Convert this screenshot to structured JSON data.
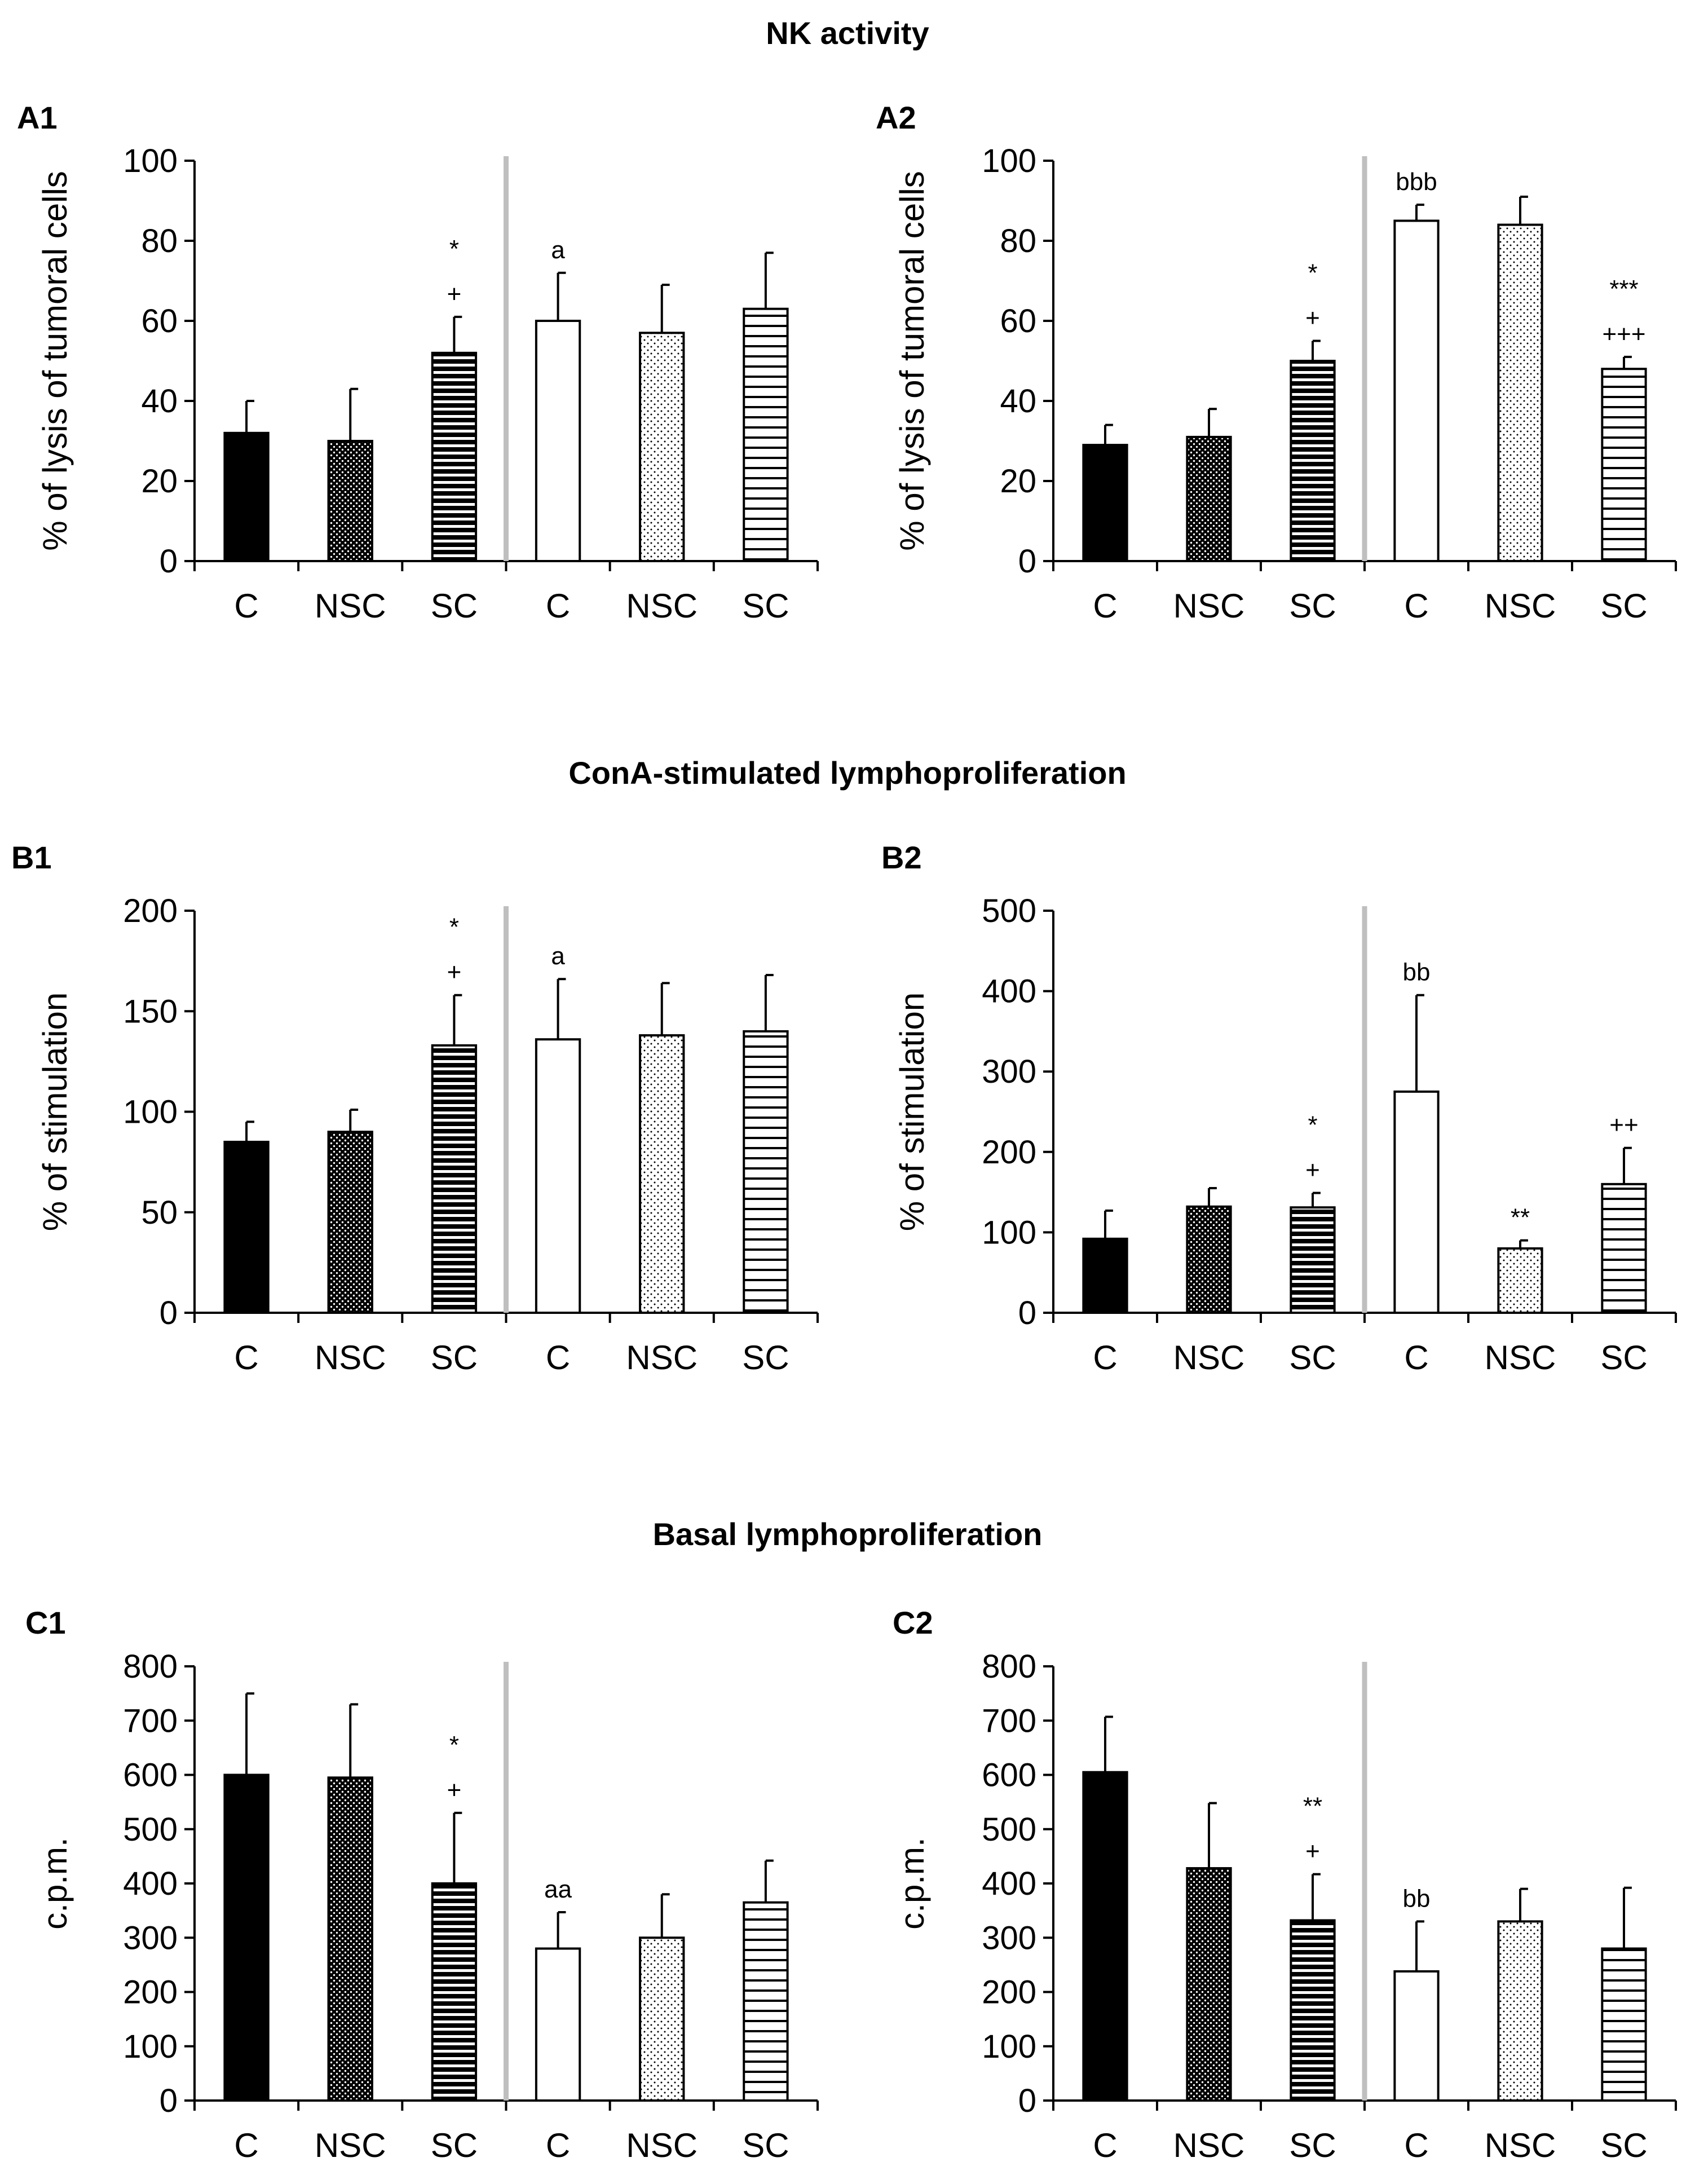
{
  "figure": {
    "sections": [
      {
        "title": "NK activity"
      },
      {
        "title": "ConA-stimulated lymphoproliferation"
      },
      {
        "title": "Basal lymphoproliferation"
      }
    ]
  },
  "colors": {
    "bar_fill": "#000000",
    "axis": "#000000",
    "divider": "#bfbfbf",
    "background": "#ffffff"
  },
  "chart_data": [
    {
      "panel": "A1",
      "type": "bar",
      "section": "NK activity",
      "ylabel": "% of lysis of tumoral cells",
      "ylim": [
        0,
        100
      ],
      "yticks": [
        0,
        20,
        40,
        60,
        80,
        100
      ],
      "categories": [
        "C",
        "NSC",
        "SC",
        "C",
        "NSC",
        "SC"
      ],
      "patterns": [
        "solid",
        "dense-dots",
        "dense-hlines",
        "empty",
        "sparse-dots",
        "sparse-hlines"
      ],
      "values": [
        32,
        30,
        52,
        60,
        57,
        63
      ],
      "errors": [
        8,
        13,
        9,
        12,
        12,
        14
      ],
      "annotations": [
        [],
        [],
        [
          "+",
          "*"
        ],
        [
          "a"
        ],
        [],
        []
      ]
    },
    {
      "panel": "A2",
      "type": "bar",
      "section": "NK activity",
      "ylabel": "% of lysis of tumoral cells",
      "ylim": [
        0,
        100
      ],
      "yticks": [
        0,
        20,
        40,
        60,
        80,
        100
      ],
      "categories": [
        "C",
        "NSC",
        "SC",
        "C",
        "NSC",
        "SC"
      ],
      "patterns": [
        "solid",
        "dense-dots",
        "dense-hlines",
        "empty",
        "sparse-dots",
        "sparse-hlines"
      ],
      "values": [
        29,
        31,
        50,
        85,
        84,
        48
      ],
      "errors": [
        5,
        7,
        5,
        4,
        7,
        3
      ],
      "annotations": [
        [],
        [],
        [
          "+",
          "*"
        ],
        [
          "bbb"
        ],
        [],
        [
          "+++",
          "***"
        ]
      ]
    },
    {
      "panel": "B1",
      "type": "bar",
      "section": "ConA-stimulated lymphoproliferation",
      "ylabel": "% of stimulation",
      "ylim": [
        0,
        200
      ],
      "yticks": [
        0,
        50,
        100,
        150,
        200
      ],
      "categories": [
        "C",
        "NSC",
        "SC",
        "C",
        "NSC",
        "SC"
      ],
      "patterns": [
        "solid",
        "dense-dots",
        "dense-hlines",
        "empty",
        "sparse-dots",
        "sparse-hlines"
      ],
      "values": [
        85,
        90,
        133,
        136,
        138,
        140
      ],
      "errors": [
        10,
        11,
        25,
        30,
        26,
        28
      ],
      "annotations": [
        [],
        [],
        [
          "+",
          "*"
        ],
        [
          "a"
        ],
        [],
        []
      ]
    },
    {
      "panel": "B2",
      "type": "bar",
      "section": "ConA-stimulated lymphoproliferation",
      "ylabel": "% of stimulation",
      "ylim": [
        0,
        500
      ],
      "yticks": [
        0,
        100,
        200,
        300,
        400,
        500
      ],
      "categories": [
        "C",
        "NSC",
        "SC",
        "C",
        "NSC",
        "SC"
      ],
      "patterns": [
        "solid",
        "dense-dots",
        "dense-hlines",
        "empty",
        "sparse-dots",
        "sparse-hlines"
      ],
      "values": [
        92,
        132,
        131,
        275,
        80,
        160
      ],
      "errors": [
        35,
        23,
        18,
        120,
        10,
        45
      ],
      "annotations": [
        [],
        [],
        [
          "+",
          "*"
        ],
        [
          "bb"
        ],
        [
          "**"
        ],
        [
          "++"
        ]
      ]
    },
    {
      "panel": "C1",
      "type": "bar",
      "section": "Basal lymphoproliferation",
      "ylabel": "c.p.m.",
      "ylim": [
        0,
        800
      ],
      "yticks": [
        0,
        100,
        200,
        300,
        400,
        500,
        600,
        700,
        800
      ],
      "categories": [
        "C",
        "NSC",
        "SC",
        "C",
        "NSC",
        "SC"
      ],
      "patterns": [
        "solid",
        "dense-dots",
        "dense-hlines",
        "empty",
        "sparse-dots",
        "sparse-hlines"
      ],
      "values": [
        600,
        595,
        400,
        280,
        300,
        365
      ],
      "errors": [
        150,
        135,
        130,
        67,
        80,
        77
      ],
      "annotations": [
        [],
        [],
        [
          "+",
          "*"
        ],
        [
          "aa"
        ],
        [],
        []
      ]
    },
    {
      "panel": "C2",
      "type": "bar",
      "section": "Basal lymphoproliferation",
      "ylabel": "c.p.m.",
      "ylim": [
        0,
        800
      ],
      "yticks": [
        0,
        100,
        200,
        300,
        400,
        500,
        600,
        700,
        800
      ],
      "categories": [
        "C",
        "NSC",
        "SC",
        "C",
        "NSC",
        "SC"
      ],
      "patterns": [
        "solid",
        "dense-dots",
        "dense-hlines",
        "empty",
        "sparse-dots",
        "sparse-hlines"
      ],
      "values": [
        605,
        428,
        332,
        238,
        330,
        280
      ],
      "errors": [
        102,
        120,
        85,
        92,
        60,
        112
      ],
      "annotations": [
        [],
        [],
        [
          "+",
          "**"
        ],
        [
          "bb"
        ],
        [],
        []
      ]
    }
  ]
}
